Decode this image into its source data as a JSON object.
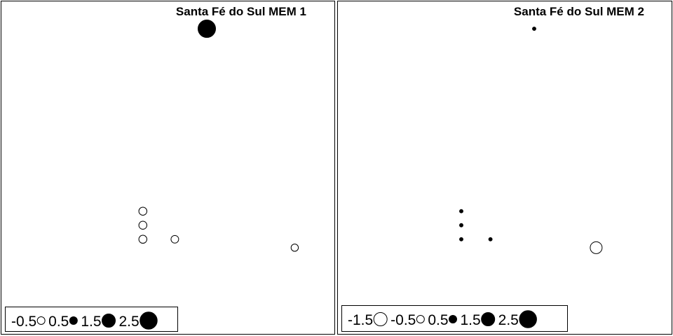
{
  "chart_data": [
    {
      "type": "scatter",
      "title": "Santa Fé do Sul MEM 1",
      "encoding": "bubble",
      "points": [
        {
          "x": 0.5,
          "y": 0.95,
          "value": 2.6
        },
        {
          "x": 0.34,
          "y": 0.3,
          "value": -0.55
        },
        {
          "x": 0.34,
          "y": 0.25,
          "value": -0.55
        },
        {
          "x": 0.34,
          "y": 0.2,
          "value": -0.55
        },
        {
          "x": 0.42,
          "y": 0.2,
          "value": -0.5
        },
        {
          "x": 0.72,
          "y": 0.17,
          "value": -0.45
        }
      ],
      "legend": {
        "values": [
          -0.5,
          0.5,
          1.5,
          2.5
        ],
        "labels": [
          "-0.5",
          "0.5",
          "1.5",
          "2.5"
        ],
        "position": "bottom-left"
      }
    },
    {
      "type": "scatter",
      "title": "Santa Fé do Sul MEM 2",
      "encoding": "bubble",
      "points": [
        {
          "x": 0.6,
          "y": 0.95,
          "value": 0.1
        },
        {
          "x": 0.4,
          "y": 0.3,
          "value": 0.1
        },
        {
          "x": 0.4,
          "y": 0.25,
          "value": 0.1
        },
        {
          "x": 0.4,
          "y": 0.2,
          "value": 0.1
        },
        {
          "x": 0.48,
          "y": 0.2,
          "value": 0.1
        },
        {
          "x": 0.77,
          "y": 0.17,
          "value": -1.2
        }
      ],
      "legend": {
        "values": [
          -1.5,
          -0.5,
          0.5,
          1.5,
          2.5
        ],
        "labels": [
          "-1.5",
          "-0.5",
          "0.5",
          "1.5",
          "2.5"
        ],
        "position": "bottom-left"
      }
    }
  ]
}
